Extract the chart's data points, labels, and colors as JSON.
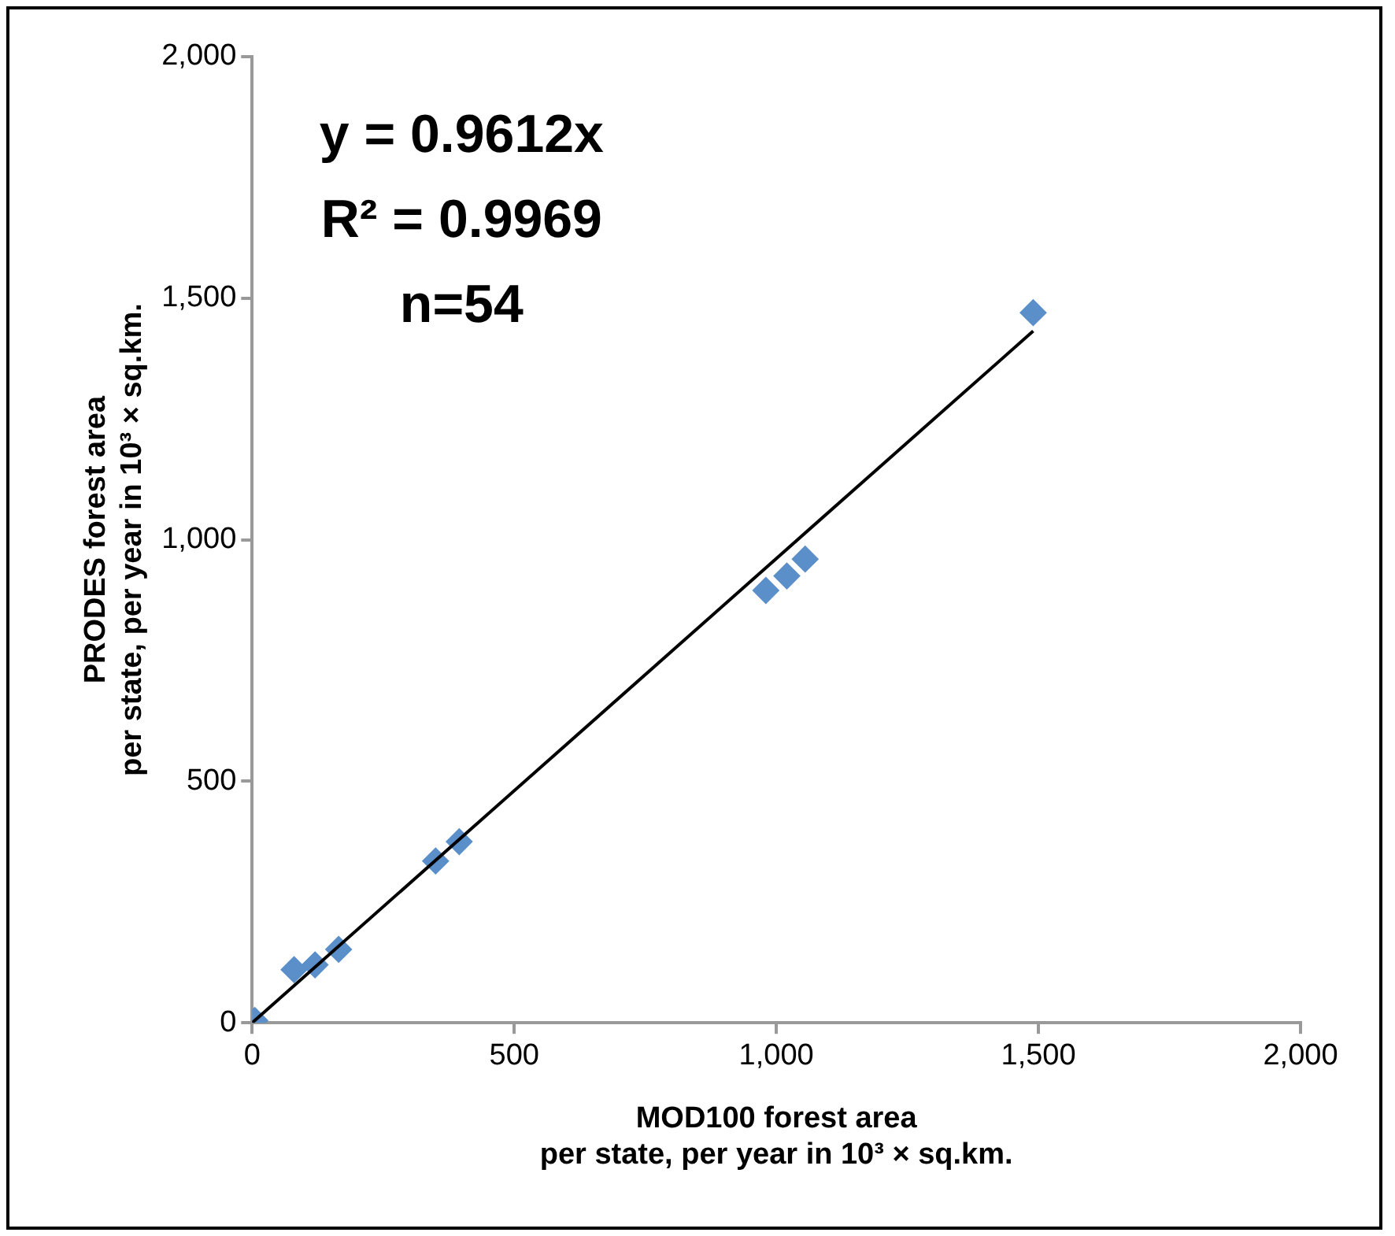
{
  "chart_data": {
    "type": "scatter",
    "xlabel": "MOD100 forest area\nper state, per year in 10³ × sq.km.",
    "ylabel": "PRODES forest area\nper state, per year in 10³ × sq.km.",
    "xlim": [
      0,
      2000
    ],
    "ylim": [
      0,
      2000
    ],
    "xticks": [
      {
        "value": 0,
        "label": "0"
      },
      {
        "value": 500,
        "label": "500"
      },
      {
        "value": 1000,
        "label": "1,000"
      },
      {
        "value": 1500,
        "label": "1,500"
      },
      {
        "value": 2000,
        "label": "2,000"
      }
    ],
    "yticks": [
      {
        "value": 0,
        "label": "0"
      },
      {
        "value": 500,
        "label": "500"
      },
      {
        "value": 1000,
        "label": "1,000"
      },
      {
        "value": 1500,
        "label": "1,500"
      },
      {
        "value": 2000,
        "label": "2,000"
      }
    ],
    "grid": false,
    "legend": false,
    "marker": "diamond",
    "annotations": [
      "y = 0.9612x",
      "R² = 0.9969",
      "n=54"
    ],
    "series": [
      {
        "color": "#5b8fc9",
        "x": [
          5,
          80,
          120,
          165,
          350,
          395,
          980,
          1020,
          1055,
          1490
        ],
        "values": [
          5,
          110,
          120,
          152,
          335,
          375,
          895,
          925,
          960,
          1470
        ]
      },
      {
        "type": "line",
        "color": "#000000",
        "marker": "none",
        "x": [
          0,
          1490
        ],
        "values": [
          0,
          1432
        ]
      }
    ]
  }
}
